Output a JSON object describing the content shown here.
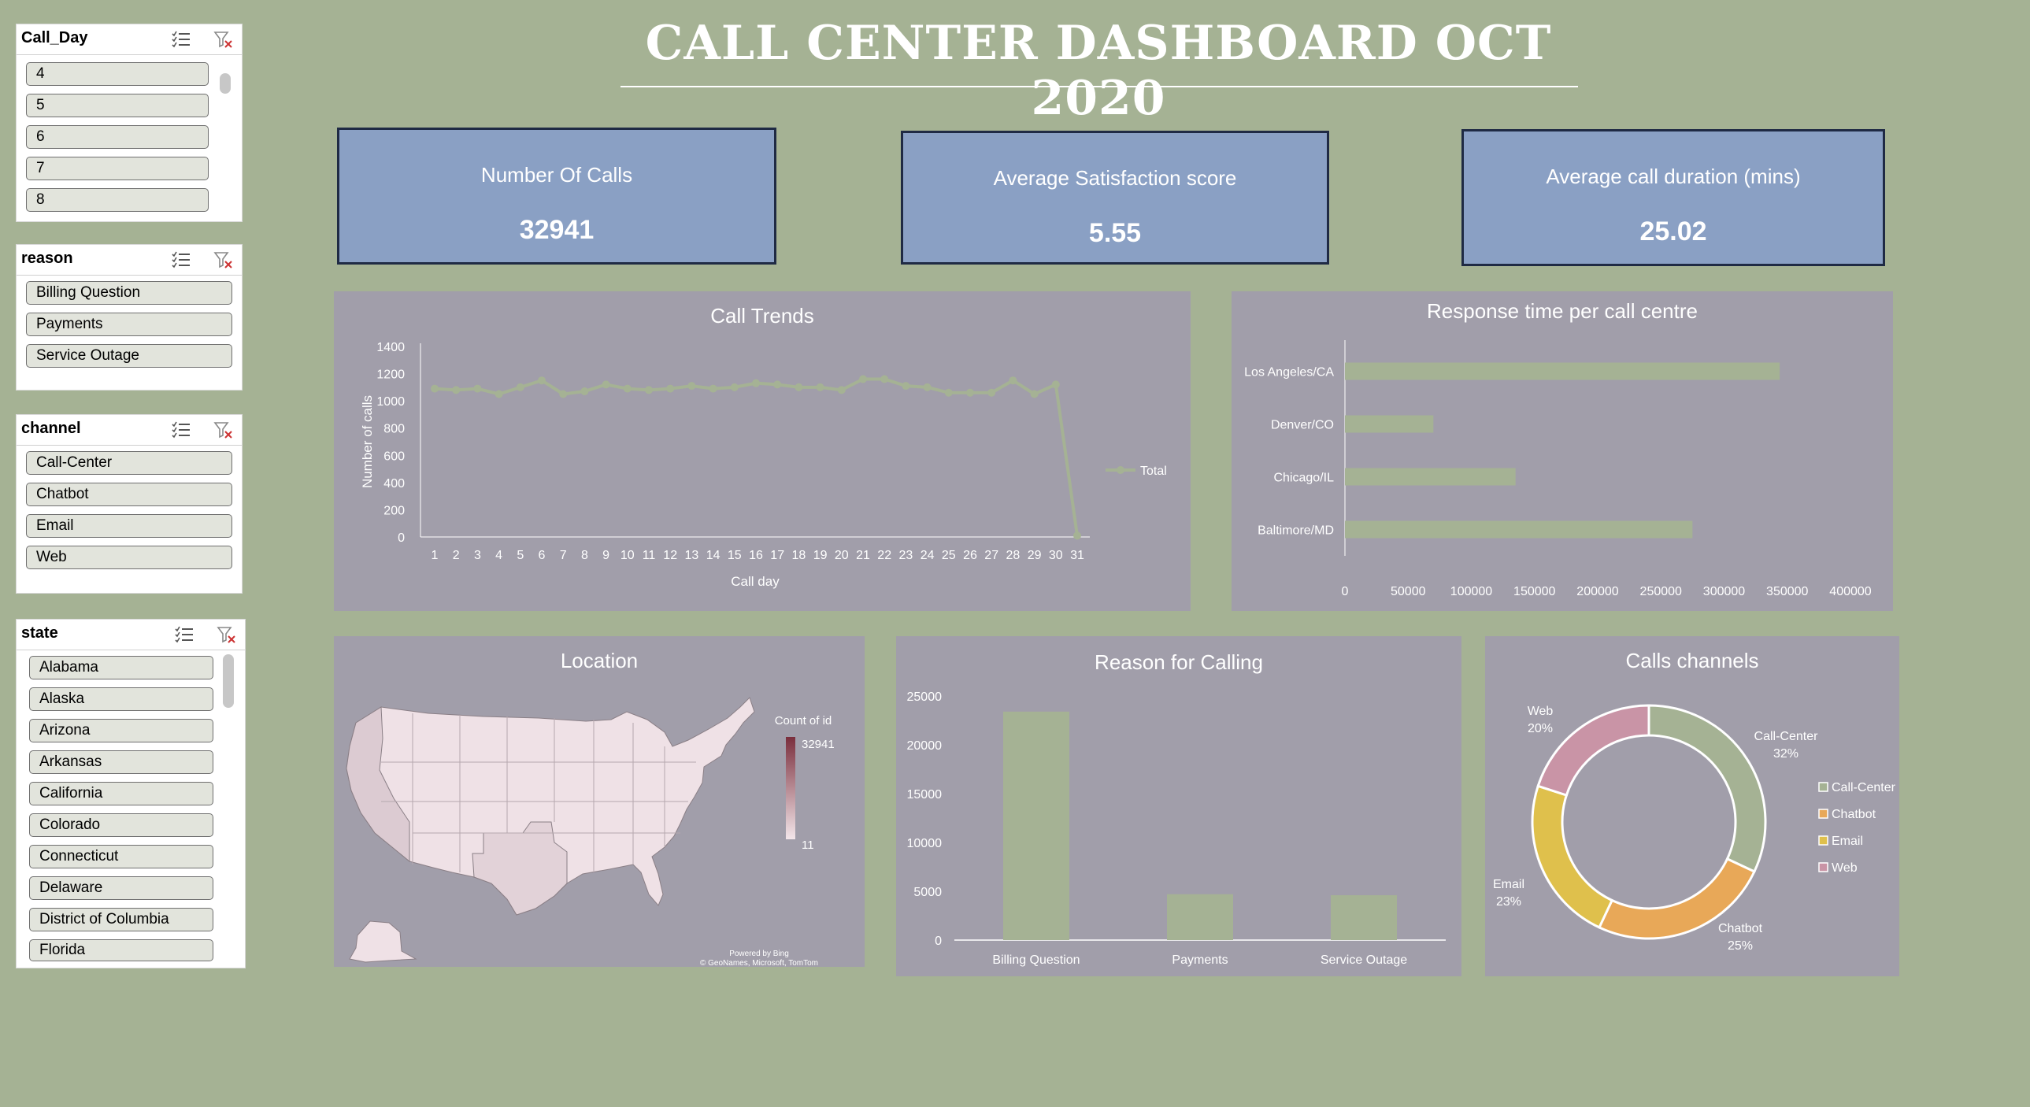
{
  "dashboard": {
    "title": "CALL CENTER DASHBOARD OCT 2020",
    "accent_color": "#a5b294",
    "panel_color": "#a19eaa",
    "kpi_color": "#8aa0c4"
  },
  "slicers": {
    "call_day": {
      "title": "Call_Day",
      "items": [
        "4",
        "5",
        "6",
        "7",
        "8"
      ]
    },
    "reason": {
      "title": "reason",
      "items": [
        "Billing Question",
        "Payments",
        "Service Outage"
      ]
    },
    "channel": {
      "title": "channel",
      "items": [
        "Call-Center",
        "Chatbot",
        "Email",
        "Web"
      ]
    },
    "state": {
      "title": "state",
      "items": [
        "Alabama",
        "Alaska",
        "Arizona",
        "Arkansas",
        "California",
        "Colorado",
        "Connecticut",
        "Delaware",
        "District of Columbia",
        "Florida"
      ]
    },
    "icons": [
      "multi-select-icon",
      "clear-filter-icon"
    ]
  },
  "kpis": [
    {
      "label": "Number Of Calls",
      "value": "32941"
    },
    {
      "label": "Average Satisfaction score",
      "value": "5.55"
    },
    {
      "label": "Average call duration (mins)",
      "value": "25.02"
    }
  ],
  "chart_data": [
    {
      "type": "line",
      "title": "Call Trends",
      "xlabel": "Call day",
      "ylabel": "Number of calls",
      "x": [
        1,
        2,
        3,
        4,
        5,
        6,
        7,
        8,
        9,
        10,
        11,
        12,
        13,
        14,
        15,
        16,
        17,
        18,
        19,
        20,
        21,
        22,
        23,
        24,
        25,
        26,
        27,
        28,
        29,
        30,
        31
      ],
      "series": [
        {
          "name": "Total",
          "values": [
            1090,
            1080,
            1090,
            1050,
            1100,
            1150,
            1050,
            1070,
            1120,
            1090,
            1080,
            1090,
            1110,
            1090,
            1100,
            1130,
            1120,
            1100,
            1100,
            1080,
            1160,
            1160,
            1110,
            1100,
            1060,
            1060,
            1060,
            1150,
            1050,
            1120,
            10
          ]
        }
      ],
      "ylim": [
        0,
        1400
      ],
      "yticks": [
        0,
        200,
        400,
        600,
        800,
        1000,
        1200,
        1400
      ],
      "legend": "right",
      "color": "#a5b294"
    },
    {
      "type": "bar",
      "orientation": "horizontal",
      "title": "Response time per call centre",
      "categories": [
        "Los Angeles/CA",
        "Denver/CO",
        "Chicago/IL",
        "Baltimore/MD"
      ],
      "values": [
        344000,
        70000,
        135000,
        275000
      ],
      "xlim": [
        0,
        400000
      ],
      "xticks": [
        0,
        50000,
        100000,
        150000,
        200000,
        250000,
        300000,
        350000,
        400000
      ],
      "color": "#a5b294"
    },
    {
      "type": "map",
      "title": "Location",
      "legend_title": "Count of id",
      "legend_max": "32941",
      "legend_min": "11",
      "attribution": [
        "Powered by Bing",
        "© GeoNames, Microsoft, TomTom"
      ]
    },
    {
      "type": "bar",
      "title": "Reason for Calling",
      "categories": [
        "Billing Question",
        "Payments",
        "Service Outage"
      ],
      "values": [
        23400,
        4700,
        4600
      ],
      "ylim": [
        0,
        25000
      ],
      "yticks": [
        0,
        5000,
        10000,
        15000,
        20000,
        25000
      ],
      "color": "#a5b294"
    },
    {
      "type": "pie",
      "donut": true,
      "title": "Calls channels",
      "categories": [
        "Call-Center",
        "Chatbot",
        "Email",
        "Web"
      ],
      "values": [
        32,
        25,
        23,
        20
      ],
      "labels": [
        "32%",
        "25%",
        "23%",
        "20%"
      ],
      "colors": [
        "#a5b294",
        "#e8a858",
        "#dfc04c",
        "#c994a6"
      ],
      "legend": "right"
    }
  ]
}
